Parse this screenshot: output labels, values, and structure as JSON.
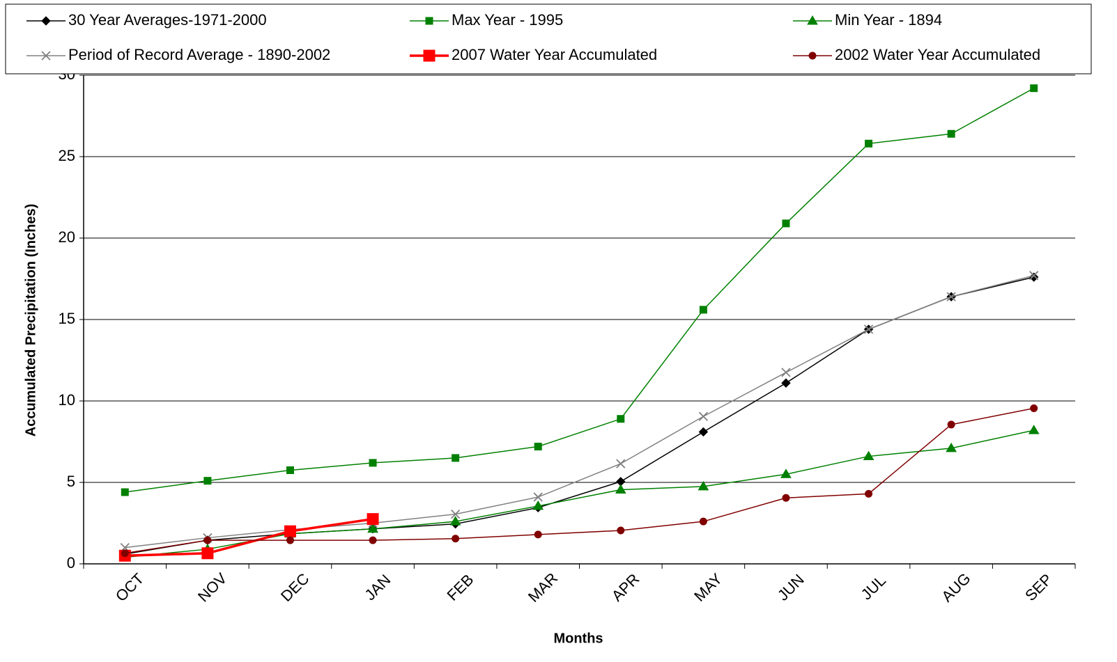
{
  "chart_data": {
    "type": "line",
    "x_label": "Months",
    "y_label": "Accumulated Precipitation (Inches)",
    "categories": [
      "OCT",
      "NOV",
      "DEC",
      "JAN",
      "FEB",
      "MAR",
      "APR",
      "MAY",
      "JUN",
      "JUL",
      "AUG",
      "SEP"
    ],
    "ylim": [
      0,
      30
    ],
    "yticks": [
      0,
      5,
      10,
      15,
      20,
      25,
      30
    ],
    "grid": true,
    "series": [
      {
        "name": "30 Year Averages-1971-2000",
        "color": "#000000",
        "marker": "diamond",
        "line_width": 1.5,
        "values": [
          0.6,
          1.45,
          1.85,
          2.15,
          2.45,
          3.45,
          5.05,
          8.1,
          11.1,
          14.4,
          16.4,
          17.6
        ]
      },
      {
        "name": "Max Year - 1995",
        "color": "#008000",
        "marker": "square",
        "line_width": 1.5,
        "values": [
          4.4,
          5.1,
          5.75,
          6.2,
          6.5,
          7.2,
          8.9,
          15.6,
          20.9,
          25.8,
          26.4,
          29.2
        ]
      },
      {
        "name": "Min Year - 1894",
        "color": "#008000",
        "marker": "triangle",
        "line_width": 1.5,
        "values": [
          0.4,
          0.9,
          1.85,
          2.15,
          2.6,
          3.55,
          4.55,
          4.75,
          5.5,
          6.6,
          7.1,
          8.2
        ]
      },
      {
        "name": "Period of Record Average - 1890-2002",
        "color": "#808080",
        "marker": "x",
        "line_width": 1.5,
        "values": [
          1.0,
          1.6,
          2.1,
          2.5,
          3.05,
          4.1,
          6.15,
          9.05,
          11.75,
          14.4,
          16.4,
          17.7
        ]
      },
      {
        "name": "2007 Water Year Accumulated",
        "color": "#ff0000",
        "marker": "bigsquare",
        "line_width": 3.5,
        "values": [
          0.5,
          0.65,
          2.0,
          2.75,
          null,
          null,
          null,
          null,
          null,
          null,
          null,
          null
        ]
      },
      {
        "name": "2002 Water Year Accumulated",
        "color": "#800000",
        "marker": "circle",
        "line_width": 1.5,
        "values": [
          0.65,
          1.45,
          1.45,
          1.45,
          1.55,
          1.8,
          2.05,
          2.6,
          4.05,
          4.3,
          8.55,
          9.55
        ]
      }
    ]
  }
}
